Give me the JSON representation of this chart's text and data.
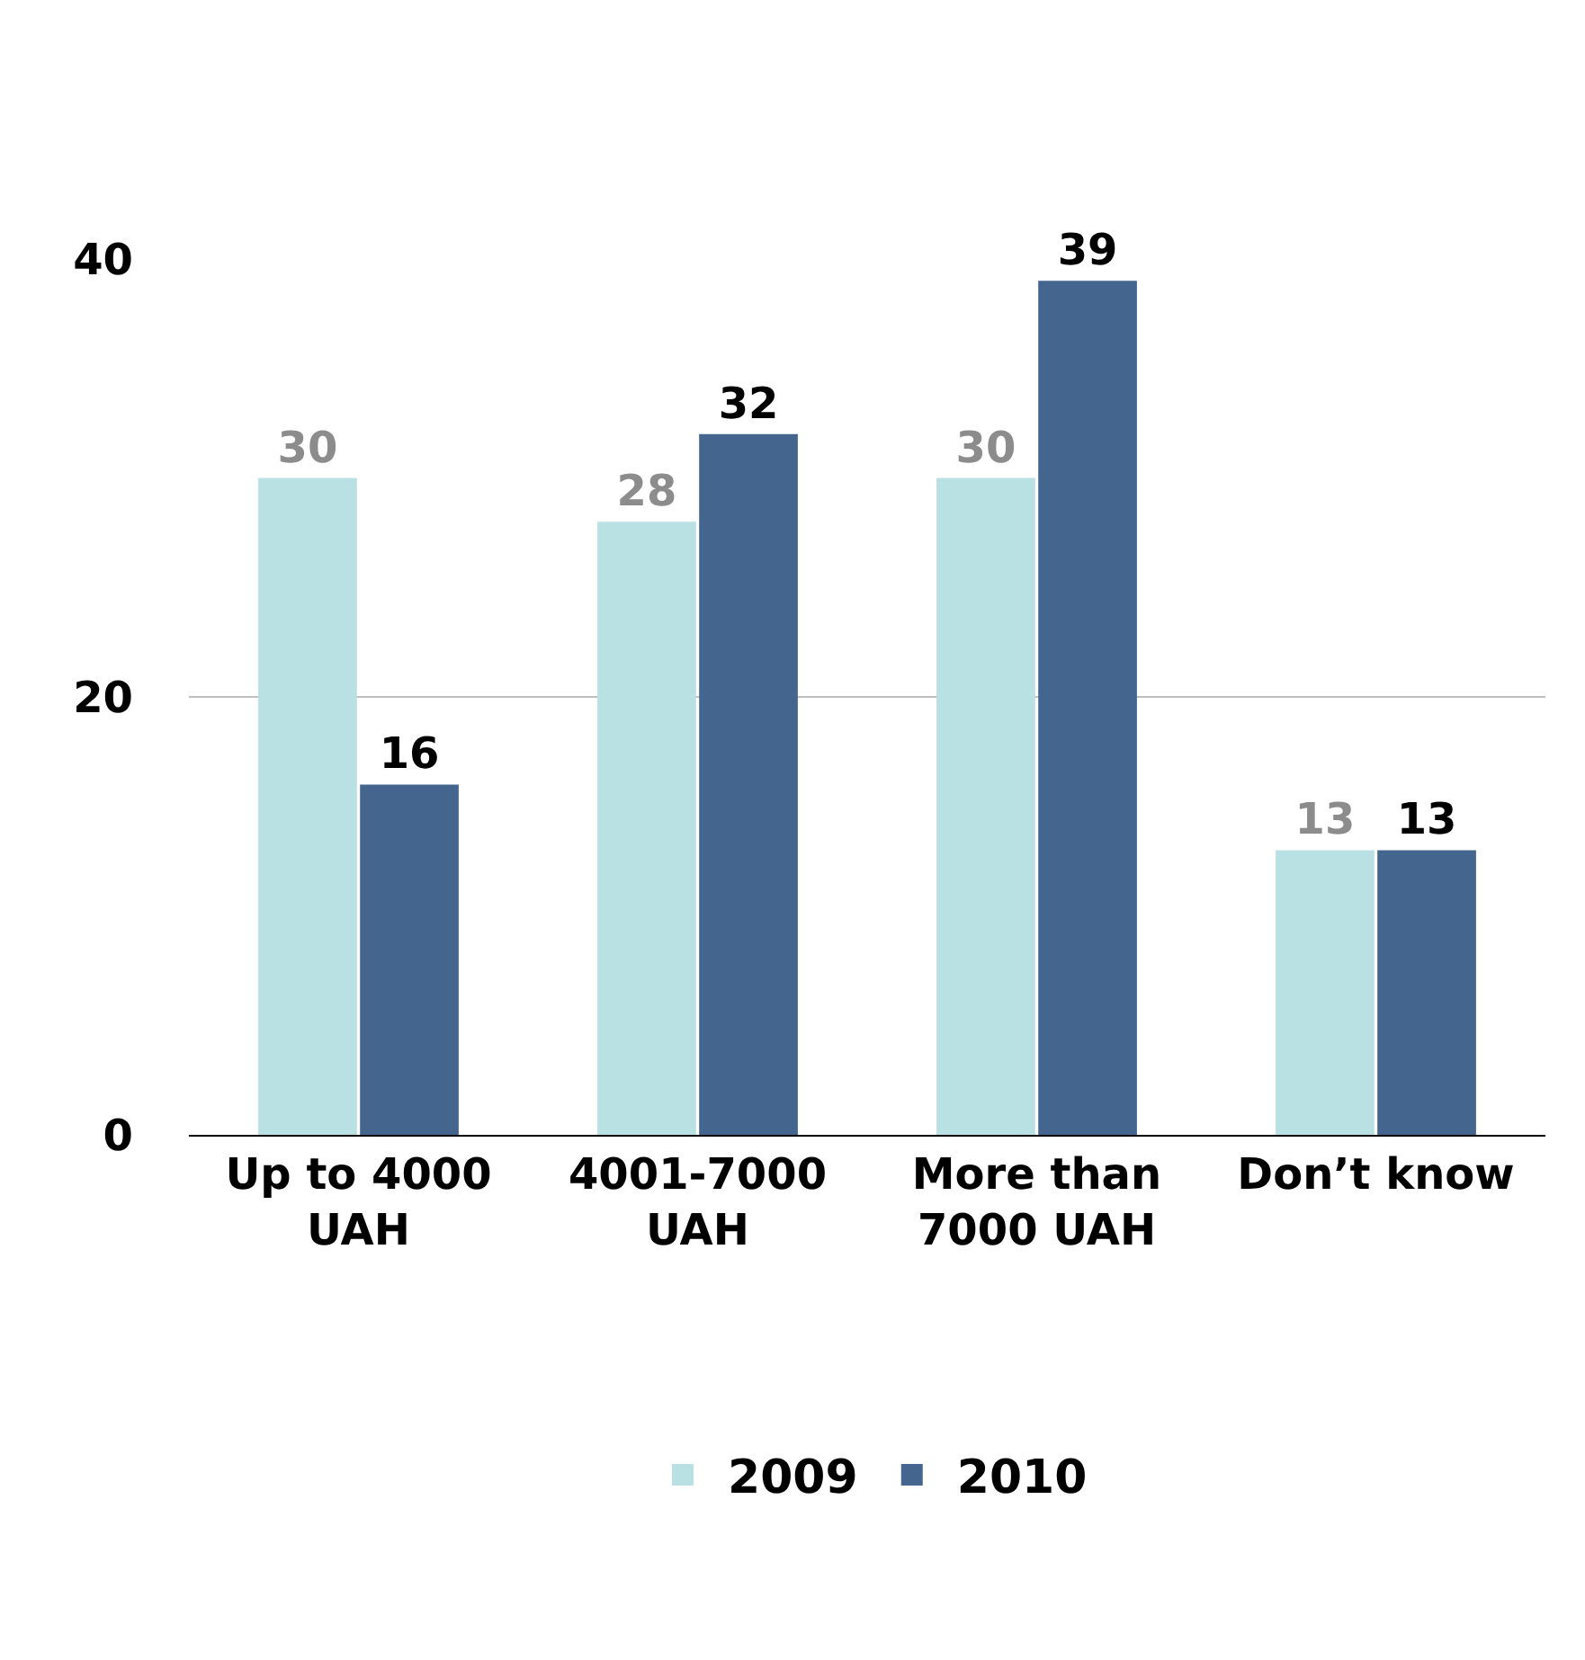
{
  "chart_data": {
    "type": "bar",
    "categories": [
      "Up to 4000 UAH",
      "4001-7000 UAH",
      "More than 7000 UAH",
      "Don’t know"
    ],
    "series": [
      {
        "name": "2009",
        "color": "#b9e0e3",
        "values": [
          30,
          28,
          30,
          13
        ]
      },
      {
        "name": "2010",
        "color": "#44668e",
        "values": [
          16,
          32,
          39,
          13
        ]
      }
    ],
    "ylim": [
      0,
      40
    ],
    "yticks": [
      0,
      20,
      40
    ],
    "grid": "y",
    "legend": "bottom",
    "data_labels": true
  }
}
